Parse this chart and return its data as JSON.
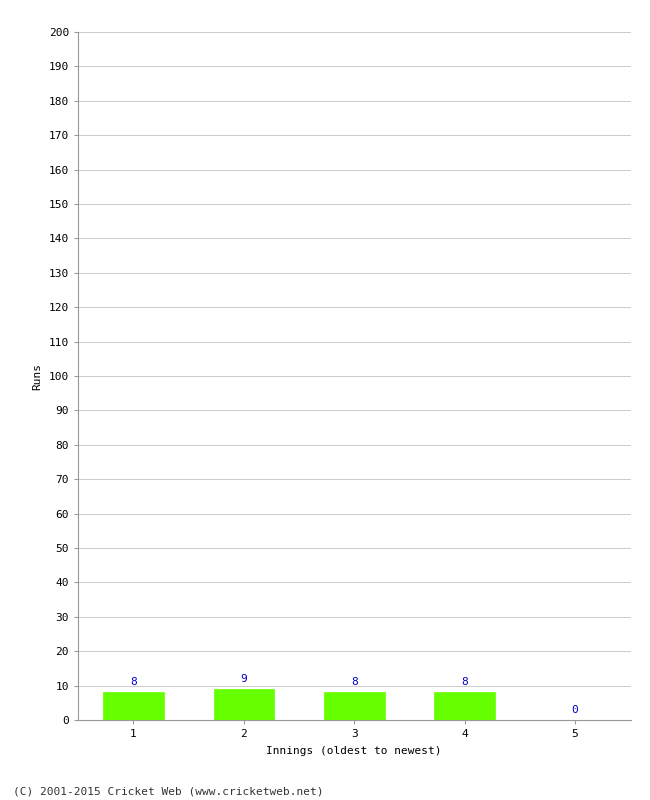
{
  "categories": [
    1,
    2,
    3,
    4,
    5
  ],
  "values": [
    8,
    9,
    8,
    8,
    0
  ],
  "bar_color": "#66ff00",
  "bar_edge_color": "#66ff00",
  "value_label_color": "#0000cc",
  "xlabel": "Innings (oldest to newest)",
  "ylabel": "Runs",
  "ylim": [
    0,
    200
  ],
  "yticks": [
    0,
    10,
    20,
    30,
    40,
    50,
    60,
    70,
    80,
    90,
    100,
    110,
    120,
    130,
    140,
    150,
    160,
    170,
    180,
    190,
    200
  ],
  "xticks": [
    1,
    2,
    3,
    4,
    5
  ],
  "footer": "(C) 2001-2015 Cricket Web (www.cricketweb.net)",
  "bg_color": "#ffffff",
  "grid_color": "#cccccc",
  "value_fontsize": 8,
  "axis_fontsize": 8,
  "label_fontsize": 8,
  "footer_fontsize": 8,
  "bar_width": 0.55
}
